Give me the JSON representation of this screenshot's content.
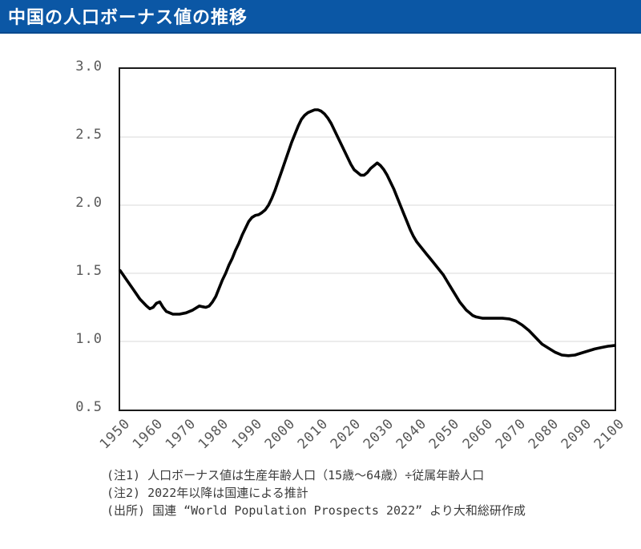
{
  "header": {
    "title": "中国の人口ボーナス値の推移",
    "bg_color": "#0B57A5",
    "edge_color": "#07498E",
    "text_color": "#FFFFFF"
  },
  "notes": {
    "note1": "(注1) 人口ボーナス値は生産年齢人口（15歳～64歳）÷従属年齢人口",
    "note2": "(注2) 2022年以降は国連による推計",
    "source": "(出所) 国連 “World Population Prospects 2022” より大和総研作成",
    "text_color": "#3B3B3B"
  },
  "chart_data": {
    "type": "line",
    "title": "中国の人口ボーナス値の推移",
    "xlabel": "",
    "ylabel": "",
    "x_range": [
      1950,
      2100
    ],
    "y_range": [
      0.5,
      3.0
    ],
    "x_ticks": [
      "1950",
      "1960",
      "1970",
      "1980",
      "1990",
      "2000",
      "2010",
      "2020",
      "2030",
      "2040",
      "2050",
      "2060",
      "2070",
      "2080",
      "2090",
      "2100"
    ],
    "y_ticks": [
      "3.0",
      "2.5",
      "2.0",
      "1.5",
      "1.0",
      "0.5"
    ],
    "grid": "horizontal",
    "grid_values": [
      2.5,
      2.0,
      1.5,
      1.0
    ],
    "legend": "none",
    "line_color": "#000000",
    "line_width": 3.6,
    "grid_color": "#D9D9D9",
    "axis_color": "#1A1A1A",
    "tick_label_color": "#595959",
    "series": [
      {
        "name": "人口ボーナス値（生産年齢人口÷従属年齢人口）",
        "points": [
          [
            1950,
            1.52
          ],
          [
            1952,
            1.45
          ],
          [
            1954,
            1.38
          ],
          [
            1956,
            1.31
          ],
          [
            1958,
            1.26
          ],
          [
            1959,
            1.24
          ],
          [
            1960,
            1.25
          ],
          [
            1961,
            1.28
          ],
          [
            1962,
            1.29
          ],
          [
            1963,
            1.25
          ],
          [
            1964,
            1.22
          ],
          [
            1965,
            1.21
          ],
          [
            1966,
            1.2
          ],
          [
            1968,
            1.2
          ],
          [
            1970,
            1.21
          ],
          [
            1972,
            1.23
          ],
          [
            1974,
            1.26
          ],
          [
            1975,
            1.255
          ],
          [
            1976,
            1.25
          ],
          [
            1977,
            1.26
          ],
          [
            1978,
            1.29
          ],
          [
            1979,
            1.33
          ],
          [
            1980,
            1.39
          ],
          [
            1981,
            1.45
          ],
          [
            1982,
            1.5
          ],
          [
            1983,
            1.56
          ],
          [
            1984,
            1.61
          ],
          [
            1985,
            1.67
          ],
          [
            1986,
            1.72
          ],
          [
            1987,
            1.78
          ],
          [
            1988,
            1.83
          ],
          [
            1989,
            1.88
          ],
          [
            1990,
            1.91
          ],
          [
            1991,
            1.925
          ],
          [
            1992,
            1.93
          ],
          [
            1993,
            1.945
          ],
          [
            1994,
            1.965
          ],
          [
            1995,
            2.0
          ],
          [
            1996,
            2.05
          ],
          [
            1997,
            2.11
          ],
          [
            1998,
            2.18
          ],
          [
            1999,
            2.25
          ],
          [
            2000,
            2.32
          ],
          [
            2001,
            2.39
          ],
          [
            2002,
            2.46
          ],
          [
            2003,
            2.52
          ],
          [
            2004,
            2.58
          ],
          [
            2005,
            2.63
          ],
          [
            2006,
            2.66
          ],
          [
            2007,
            2.68
          ],
          [
            2008,
            2.69
          ],
          [
            2009,
            2.7
          ],
          [
            2010,
            2.7
          ],
          [
            2011,
            2.69
          ],
          [
            2012,
            2.67
          ],
          [
            2013,
            2.64
          ],
          [
            2014,
            2.6
          ],
          [
            2015,
            2.55
          ],
          [
            2016,
            2.5
          ],
          [
            2017,
            2.45
          ],
          [
            2018,
            2.4
          ],
          [
            2019,
            2.35
          ],
          [
            2020,
            2.3
          ],
          [
            2021,
            2.26
          ],
          [
            2022,
            2.24
          ],
          [
            2023,
            2.22
          ],
          [
            2024,
            2.22
          ],
          [
            2025,
            2.24
          ],
          [
            2026,
            2.27
          ],
          [
            2027,
            2.29
          ],
          [
            2028,
            2.31
          ],
          [
            2029,
            2.29
          ],
          [
            2030,
            2.26
          ],
          [
            2031,
            2.22
          ],
          [
            2032,
            2.17
          ],
          [
            2033,
            2.12
          ],
          [
            2034,
            2.06
          ],
          [
            2035,
            2.0
          ],
          [
            2036,
            1.94
          ],
          [
            2037,
            1.88
          ],
          [
            2038,
            1.82
          ],
          [
            2039,
            1.77
          ],
          [
            2040,
            1.73
          ],
          [
            2041,
            1.7
          ],
          [
            2042,
            1.67
          ],
          [
            2043,
            1.64
          ],
          [
            2044,
            1.61
          ],
          [
            2045,
            1.58
          ],
          [
            2046,
            1.55
          ],
          [
            2047,
            1.52
          ],
          [
            2048,
            1.49
          ],
          [
            2049,
            1.45
          ],
          [
            2050,
            1.41
          ],
          [
            2051,
            1.37
          ],
          [
            2052,
            1.33
          ],
          [
            2053,
            1.29
          ],
          [
            2054,
            1.26
          ],
          [
            2055,
            1.23
          ],
          [
            2056,
            1.21
          ],
          [
            2057,
            1.19
          ],
          [
            2058,
            1.18
          ],
          [
            2060,
            1.17
          ],
          [
            2062,
            1.17
          ],
          [
            2064,
            1.17
          ],
          [
            2066,
            1.17
          ],
          [
            2068,
            1.165
          ],
          [
            2070,
            1.15
          ],
          [
            2072,
            1.12
          ],
          [
            2074,
            1.08
          ],
          [
            2076,
            1.03
          ],
          [
            2078,
            0.98
          ],
          [
            2080,
            0.95
          ],
          [
            2082,
            0.92
          ],
          [
            2084,
            0.9
          ],
          [
            2086,
            0.895
          ],
          [
            2088,
            0.9
          ],
          [
            2090,
            0.915
          ],
          [
            2092,
            0.93
          ],
          [
            2094,
            0.945
          ],
          [
            2096,
            0.955
          ],
          [
            2098,
            0.965
          ],
          [
            2100,
            0.97
          ]
        ]
      }
    ]
  }
}
